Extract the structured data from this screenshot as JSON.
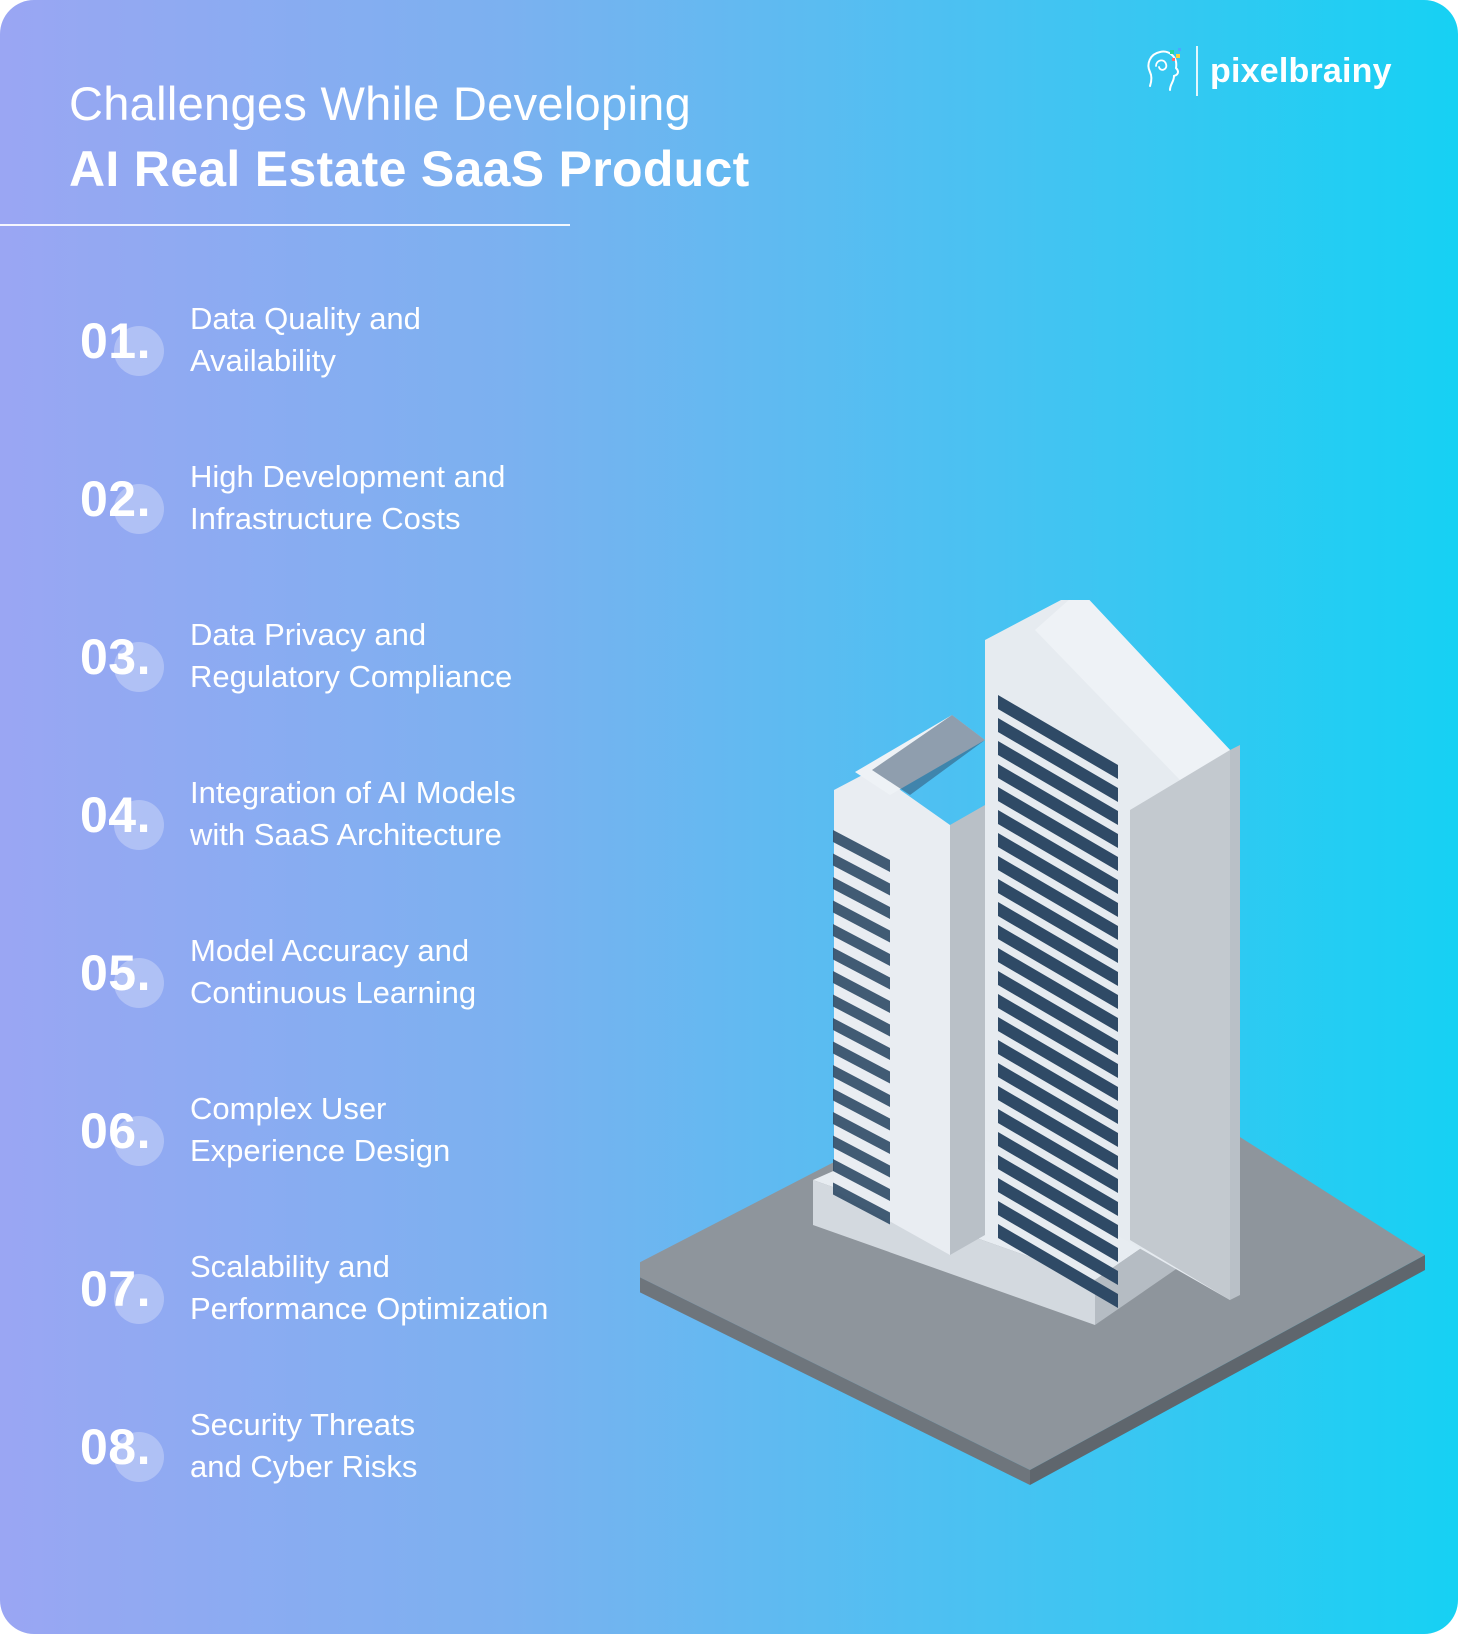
{
  "header": {
    "title_line1": "Challenges While Developing",
    "title_line2": "AI Real Estate SaaS Product"
  },
  "brand": {
    "logo_text": "pixelbrainy",
    "logo_icon": "brain-head-icon"
  },
  "challenges": [
    {
      "number": "01.",
      "line1": "Data Quality and",
      "line2": "Availability"
    },
    {
      "number": "02.",
      "line1": "High Development and",
      "line2": "Infrastructure Costs"
    },
    {
      "number": "03.",
      "line1": "Data Privacy and",
      "line2": "Regulatory Compliance"
    },
    {
      "number": "04.",
      "line1": "Integration of AI Models",
      "line2": "with SaaS Architecture"
    },
    {
      "number": "05.",
      "line1": "Model Accuracy and",
      "line2": "Continuous Learning"
    },
    {
      "number": "06.",
      "line1": "Complex User",
      "line2": "Experience Design"
    },
    {
      "number": "07.",
      "line1": "Scalability and",
      "line2": "Performance Optimization"
    },
    {
      "number": "08.",
      "line1": "Security Threats",
      "line2": "and Cyber Risks"
    }
  ],
  "colors": {
    "gradient_start": "#9aa6f3",
    "gradient_end": "#16d1f3",
    "window_dark": "#2f4a66",
    "building_light": "#e3e8ee"
  }
}
